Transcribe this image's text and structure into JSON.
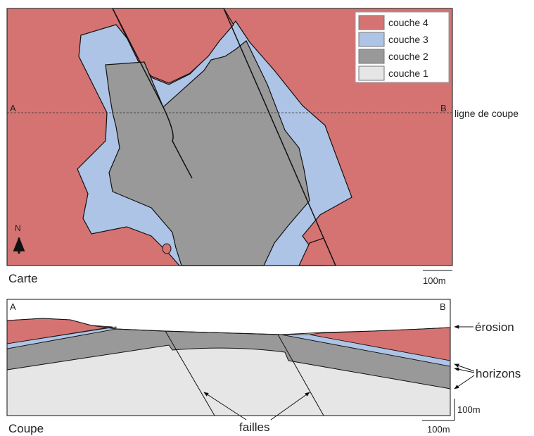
{
  "map": {
    "legend": [
      "couche 4",
      "couche 3",
      "couche 2",
      "couche 1"
    ],
    "point_a": "A",
    "point_b": "B",
    "section_line_label": "ligne de coupe",
    "north": "N",
    "title": "Carte",
    "scale": "100m"
  },
  "section": {
    "point_a": "A",
    "point_b": "B",
    "erosion": "érosion",
    "horizons": "horizons",
    "faults": "failles",
    "vertical_scale": "100m",
    "horizontal_scale": "100m",
    "title": "Coupe"
  }
}
